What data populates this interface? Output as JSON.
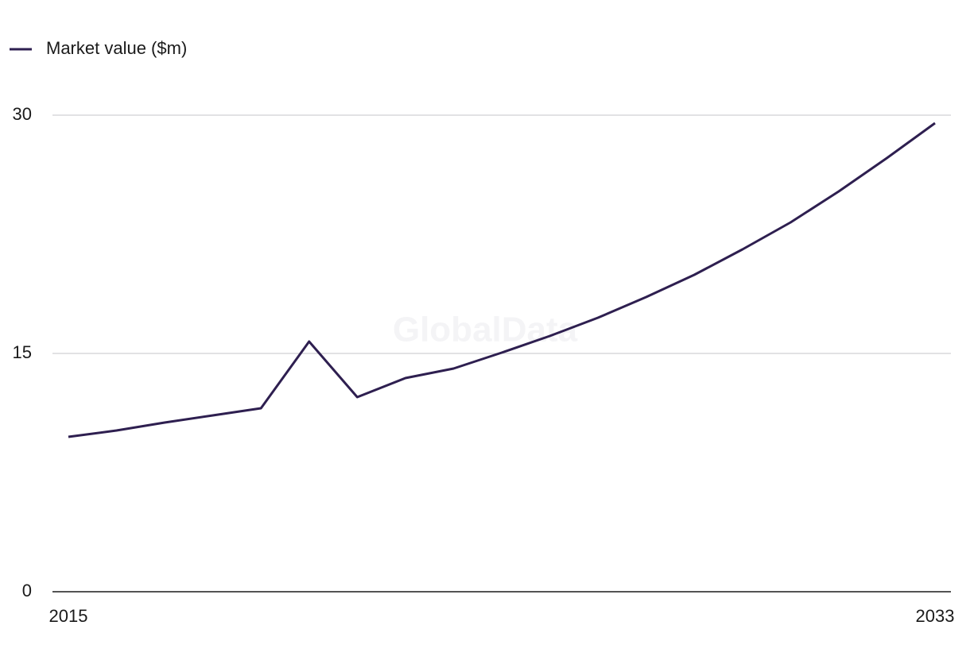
{
  "chart_data": {
    "type": "line",
    "watermark": "GlobalData",
    "x": [
      2015,
      2016,
      2017,
      2018,
      2019,
      2020,
      2021,
      2022,
      2023,
      2024,
      2025,
      2026,
      2027,
      2028,
      2029,
      2030,
      2031,
      2032,
      2033
    ],
    "series": [
      {
        "name": "Market value ($m)",
        "color": "#2e1f50",
        "values": [
          9.75,
          10.15,
          10.65,
          11.1,
          11.55,
          15.75,
          12.25,
          13.45,
          14.05,
          15.05,
          16.1,
          17.25,
          18.55,
          19.95,
          21.55,
          23.25,
          25.2,
          27.3,
          29.5
        ]
      }
    ],
    "xlim": [
      2015,
      2033
    ],
    "xticks": [
      2015,
      2033
    ],
    "ylim": [
      0,
      30
    ],
    "yticks": [
      0,
      15,
      30
    ],
    "grid": true,
    "legend": "top-left"
  }
}
